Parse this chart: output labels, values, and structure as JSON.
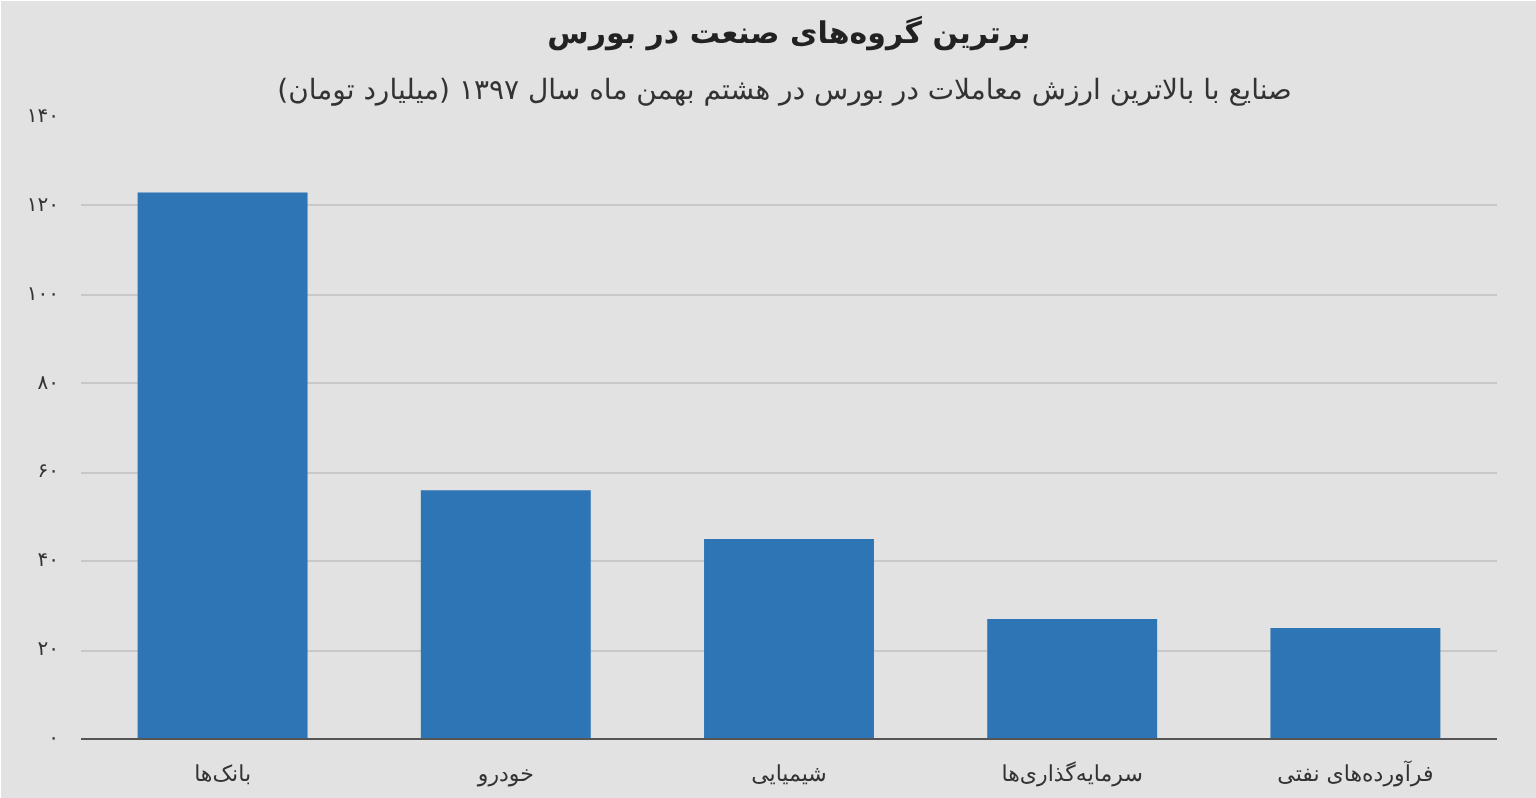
{
  "chart_data": {
    "type": "bar",
    "title": "برترین گروه‌های صنعت در بورس",
    "subtitle": "صنایع با بالاترین ارزش  معاملات در بورس در هشتم بهمن ماه سال ۱۳۹۷ (میلیارد تومان)",
    "categories": [
      "بانک‌ها",
      "خودرو",
      "شیمیایی",
      "سرمایه‌گذاری‌ها",
      "فرآورده‌های نفتی"
    ],
    "values": [
      123,
      56,
      45,
      27,
      25
    ],
    "color": "#2e75b6",
    "ylim": [
      0,
      140
    ],
    "yticks": [
      {
        "value": 0,
        "label": "۰"
      },
      {
        "value": 20,
        "label": "۲۰"
      },
      {
        "value": 40,
        "label": "۴۰"
      },
      {
        "value": 60,
        "label": "۶۰"
      },
      {
        "value": 80,
        "label": "۸۰"
      },
      {
        "value": 100,
        "label": "۱۰۰"
      },
      {
        "value": 120,
        "label": "۱۲۰"
      },
      {
        "value": 140,
        "label": "۱۴۰"
      }
    ],
    "grid": "y"
  }
}
